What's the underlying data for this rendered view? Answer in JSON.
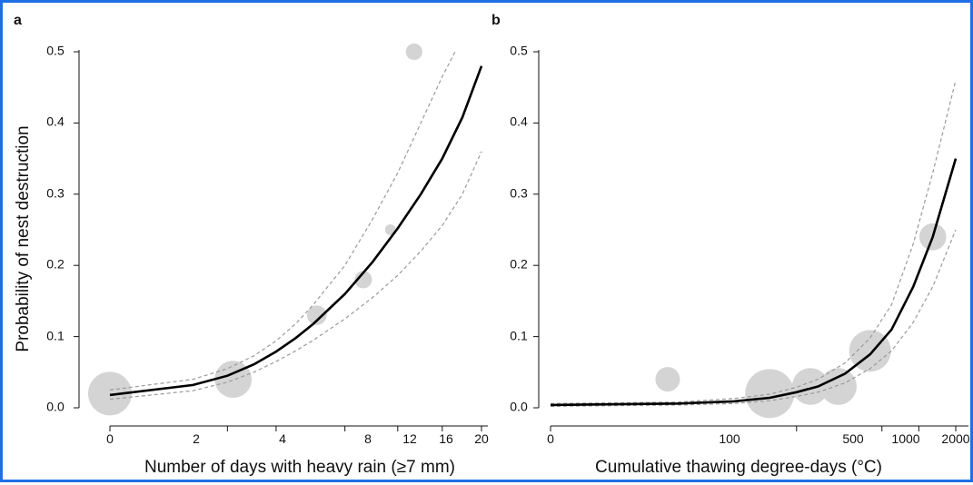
{
  "frame_color": "#1f6fe6",
  "chart_data": [
    {
      "type": "line",
      "panel_label": "a",
      "xlabel": "Number of days with heavy rain (≥7 mm)",
      "ylabel": "Probability of nest destruction",
      "ylim": [
        0,
        0.5
      ],
      "y_ticks": [
        "0.0",
        "0.1",
        "0.2",
        "0.3",
        "0.4",
        "0.5"
      ],
      "x_scale": "sqrt",
      "xlim": [
        0,
        20
      ],
      "x_ticks": [
        "0",
        "2",
        "4",
        "8",
        "12",
        "16",
        "20"
      ],
      "fit": {
        "x": [
          0,
          1,
          2,
          3,
          4,
          5,
          6,
          8,
          10,
          12,
          14,
          16,
          18,
          20
        ],
        "y": [
          0.018,
          0.032,
          0.045,
          0.061,
          0.079,
          0.098,
          0.118,
          0.16,
          0.205,
          0.252,
          0.3,
          0.35,
          0.408,
          0.48
        ]
      },
      "ci_lower": {
        "x": [
          0,
          1,
          2,
          3,
          4,
          5,
          6,
          8,
          10,
          12,
          14,
          16,
          18,
          20
        ],
        "y": [
          0.012,
          0.024,
          0.036,
          0.05,
          0.065,
          0.08,
          0.095,
          0.125,
          0.155,
          0.186,
          0.22,
          0.256,
          0.3,
          0.36
        ]
      },
      "ci_upper": {
        "x": [
          0,
          1,
          2,
          3,
          4,
          5,
          6,
          8,
          10,
          12,
          14,
          16,
          18,
          20
        ],
        "y": [
          0.025,
          0.04,
          0.055,
          0.073,
          0.094,
          0.118,
          0.145,
          0.2,
          0.265,
          0.33,
          0.4,
          0.465,
          0.52,
          0.52
        ]
      },
      "points": [
        {
          "x": 0,
          "y": 0.02,
          "size": 1.0
        },
        {
          "x": 2.2,
          "y": 0.04,
          "size": 0.85
        },
        {
          "x": 6.2,
          "y": 0.13,
          "size": 0.45
        },
        {
          "x": 9.3,
          "y": 0.18,
          "size": 0.4
        },
        {
          "x": 11.4,
          "y": 0.25,
          "size": 0.25
        },
        {
          "x": 13.4,
          "y": 0.5,
          "size": 0.38
        }
      ],
      "line_color": "#000000",
      "ci_color": "#9a9a9a",
      "point_color": "#d4d4d4"
    },
    {
      "type": "line",
      "panel_label": "b",
      "xlabel": "Cumulative thawing degree-days (°C)",
      "ylabel": "",
      "ylim": [
        0,
        0.5
      ],
      "y_ticks": [
        "0.0",
        "0.1",
        "0.2",
        "0.3",
        "0.4",
        "0.5"
      ],
      "x_scale": "log1p",
      "xlim": [
        0,
        2000
      ],
      "x_ticks": [
        "0",
        "100",
        "500",
        "1000",
        "2000"
      ],
      "fit": {
        "x": [
          0,
          10,
          30,
          60,
          100,
          150,
          250,
          400,
          600,
          900,
          1300,
          2000
        ],
        "y": [
          0.004,
          0.006,
          0.009,
          0.014,
          0.022,
          0.03,
          0.048,
          0.075,
          0.11,
          0.17,
          0.24,
          0.35
        ]
      },
      "ci_lower": {
        "x": [
          0,
          10,
          30,
          60,
          100,
          150,
          250,
          400,
          600,
          900,
          1300,
          2000
        ],
        "y": [
          0.002,
          0.004,
          0.006,
          0.01,
          0.016,
          0.022,
          0.035,
          0.055,
          0.08,
          0.12,
          0.17,
          0.25
        ]
      },
      "ci_upper": {
        "x": [
          0,
          10,
          30,
          60,
          100,
          150,
          250,
          400,
          600,
          900,
          1300,
          2000
        ],
        "y": [
          0.006,
          0.008,
          0.013,
          0.019,
          0.029,
          0.04,
          0.063,
          0.098,
          0.145,
          0.23,
          0.33,
          0.46
        ]
      },
      "points": [
        {
          "x": 8,
          "y": 0.04,
          "size": 0.5
        },
        {
          "x": 60,
          "y": 0.02,
          "size": 1.0
        },
        {
          "x": 130,
          "y": 0.03,
          "size": 0.75
        },
        {
          "x": 220,
          "y": 0.03,
          "size": 0.75
        },
        {
          "x": 400,
          "y": 0.08,
          "size": 0.85
        },
        {
          "x": 1300,
          "y": 0.24,
          "size": 0.55
        }
      ],
      "line_color": "#000000",
      "ci_color": "#9a9a9a",
      "point_color": "#d4d4d4"
    }
  ]
}
